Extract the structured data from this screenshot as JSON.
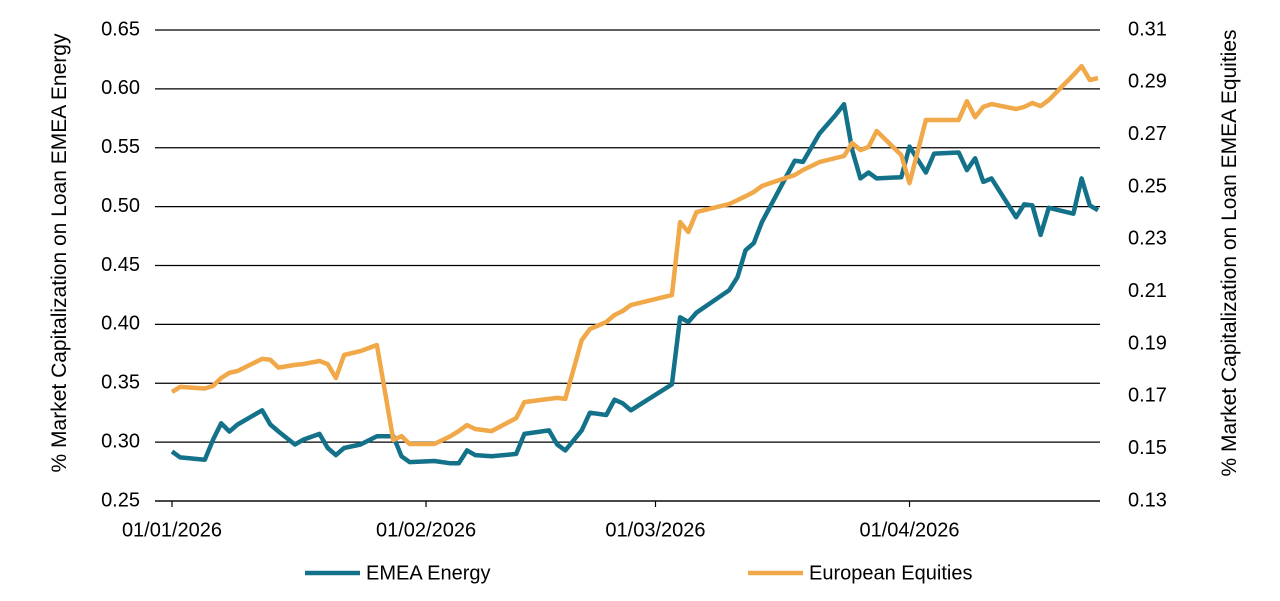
{
  "chart_data": {
    "type": "line",
    "ylabel": "% Market Capitalization on Loan EMEA Energy",
    "y2label": "% Market Capitalization on Loan EMEA Equities",
    "x": [
      "01/01/2026",
      "02/01/2026",
      "05/01/2026",
      "06/01/2026",
      "07/01/2026",
      "08/01/2026",
      "09/01/2026",
      "12/01/2026",
      "13/01/2026",
      "14/01/2026",
      "16/01/2026",
      "17/01/2026",
      "19/01/2026",
      "20/01/2026",
      "21/01/2026",
      "22/01/2026",
      "24/01/2026",
      "26/01/2026",
      "28/01/2026",
      "29/01/2026",
      "30/01/2026",
      "02/02/2026",
      "04/02/2026",
      "05/02/2026",
      "06/02/2026",
      "07/02/2026",
      "09/02/2026",
      "12/02/2026",
      "13/02/2026",
      "16/02/2026",
      "17/02/2026",
      "18/02/2026",
      "20/02/2026",
      "21/02/2026",
      "23/02/2026",
      "24/02/2026",
      "25/02/2026",
      "26/02/2026",
      "03/03/2026",
      "04/03/2026",
      "05/03/2026",
      "06/03/2026",
      "10/03/2026",
      "11/03/2026",
      "12/03/2026",
      "13/03/2026",
      "14/03/2026",
      "15/03/2026",
      "18/03/2026",
      "19/03/2026",
      "21/03/2026",
      "23/03/2026",
      "24/03/2026",
      "25/03/2026",
      "26/03/2026",
      "27/03/2026",
      "28/03/2026",
      "31/03/2026",
      "01/04/2026",
      "03/04/2026",
      "04/04/2026",
      "07/04/2026",
      "08/04/2026",
      "09/04/2026",
      "10/04/2026",
      "11/04/2026",
      "14/04/2026",
      "15/04/2026",
      "16/04/2026",
      "17/04/2026",
      "18/04/2026",
      "21/04/2026",
      "22/04/2026",
      "23/04/2026",
      "24/04/2026"
    ],
    "series": [
      {
        "name": "EMEA Energy",
        "color": "#13728a",
        "axis": "y",
        "values": [
          0.292,
          0.287,
          0.285,
          0.302,
          0.316,
          0.309,
          0.315,
          0.327,
          0.315,
          0.309,
          0.298,
          0.302,
          0.307,
          0.295,
          0.289,
          0.295,
          0.298,
          0.305,
          0.305,
          0.288,
          0.283,
          0.284,
          0.282,
          0.282,
          0.293,
          0.289,
          0.288,
          0.29,
          0.307,
          0.31,
          0.298,
          0.293,
          0.31,
          0.325,
          0.323,
          0.336,
          0.333,
          0.327,
          0.349,
          0.406,
          0.402,
          0.41,
          0.429,
          0.44,
          0.463,
          0.469,
          0.487,
          0.5,
          0.539,
          0.538,
          0.562,
          0.578,
          0.587,
          0.548,
          0.524,
          0.529,
          0.524,
          0.525,
          0.551,
          0.529,
          0.545,
          0.546,
          0.531,
          0.541,
          0.521,
          0.524,
          0.491,
          0.502,
          0.501,
          0.476,
          0.499,
          0.494,
          0.524,
          0.501,
          0.497
        ]
      },
      {
        "name": "European Equities",
        "color": "#f0a848",
        "axis": "y2",
        "values": [
          0.1717,
          0.1736,
          0.173,
          0.174,
          0.177,
          0.179,
          0.1797,
          0.1843,
          0.184,
          0.181,
          0.182,
          0.1823,
          0.1835,
          0.1823,
          0.177,
          0.1858,
          0.1873,
          0.1896,
          0.1533,
          0.1548,
          0.1518,
          0.1518,
          0.1548,
          0.1567,
          0.159,
          0.1575,
          0.1567,
          0.1617,
          0.1678,
          0.169,
          0.1694,
          0.169,
          0.1915,
          0.1957,
          0.1984,
          0.2011,
          0.2026,
          0.2049,
          0.2087,
          0.2366,
          0.2328,
          0.2404,
          0.2435,
          0.245,
          0.2465,
          0.2481,
          0.2504,
          0.2515,
          0.2546,
          0.2565,
          0.2595,
          0.2611,
          0.2618,
          0.2668,
          0.2641,
          0.2653,
          0.2714,
          0.2622,
          0.2515,
          0.2756,
          0.2756,
          0.2756,
          0.2828,
          0.2767,
          0.2806,
          0.2817,
          0.2798,
          0.2806,
          0.2821,
          0.2809,
          0.2832,
          0.2928,
          0.2962,
          0.2909,
          0.2916
        ]
      }
    ],
    "xlim": [
      "01/01/2026",
      "24/04/2026"
    ],
    "xticks": [
      "01/01/2026",
      "01/02/2026",
      "01/03/2026",
      "01/04/2026"
    ],
    "ylim": [
      0.25,
      0.65
    ],
    "yticks": [
      0.25,
      {
        "value": 0.3,
        "label": "0.30"
      },
      0.35,
      {
        "value": 0.4,
        "label": "0.40"
      },
      0.45,
      {
        "value": 0.5,
        "label": "0.50"
      },
      0.55,
      {
        "value": 0.6,
        "label": "0.60"
      },
      0.65
    ],
    "y2lim": [
      0.13,
      0.31
    ],
    "y2ticks": [
      0.13,
      0.15,
      0.17,
      0.19,
      0.21,
      0.23,
      0.25,
      0.27,
      0.29,
      0.31
    ],
    "grid": true,
    "legend": "bottom"
  }
}
